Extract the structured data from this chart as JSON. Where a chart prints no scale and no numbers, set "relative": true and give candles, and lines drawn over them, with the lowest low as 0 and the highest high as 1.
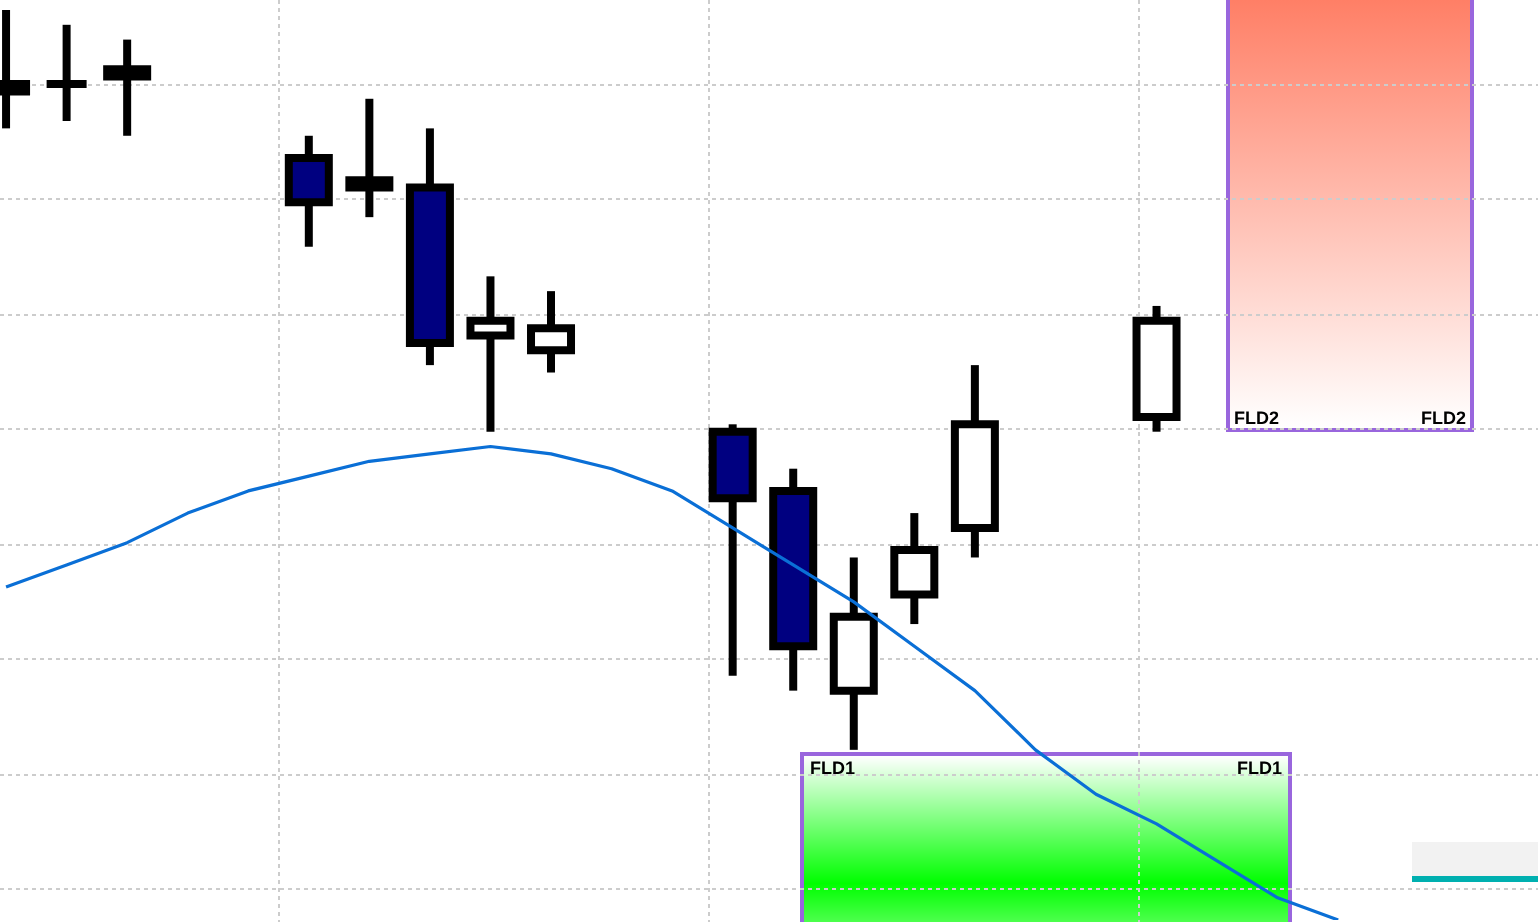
{
  "chart_data": {
    "type": "candlestick",
    "relative": true,
    "grid": true,
    "legend": false,
    "colors": [
      "#ffffff",
      "#000000",
      "#ffffff",
      null,
      null,
      "#000080",
      "#ffffff",
      "#000080",
      "#ffffff",
      "#ffffff",
      null,
      null,
      "#000080",
      "#000080",
      "#ffffff",
      "#ffffff",
      "#ffffff",
      null,
      null,
      "#ffffff",
      null,
      null,
      null,
      null,
      null,
      null
    ],
    "categories": [
      null,
      null,
      null,
      null,
      null,
      null,
      null,
      null,
      null,
      null,
      null,
      null,
      null,
      null,
      null,
      null,
      null,
      null,
      null,
      null,
      null,
      null,
      null,
      null,
      null,
      null
    ],
    "ohlc": [
      [
        0.89,
        1.0,
        0.84,
        0.9
      ],
      [
        0.9,
        0.98,
        0.85,
        0.9
      ],
      [
        0.91,
        0.96,
        0.83,
        0.92
      ],
      null,
      null,
      [
        0.8,
        0.83,
        0.68,
        0.74
      ],
      [
        0.76,
        0.88,
        0.72,
        0.77
      ],
      [
        0.76,
        0.84,
        0.52,
        0.55
      ],
      [
        0.56,
        0.64,
        0.43,
        0.58
      ],
      [
        0.54,
        0.62,
        0.51,
        0.57
      ],
      null,
      null,
      [
        0.43,
        0.44,
        0.1,
        0.34
      ],
      [
        0.35,
        0.38,
        0.08,
        0.14
      ],
      [
        0.08,
        0.26,
        0.0,
        0.18
      ],
      [
        0.21,
        0.32,
        0.17,
        0.27
      ],
      [
        0.3,
        0.52,
        0.26,
        0.44
      ],
      null,
      null,
      [
        0.45,
        0.6,
        0.43,
        0.58
      ],
      null,
      null,
      null,
      null,
      null,
      null
    ],
    "series": [
      {
        "type": "line",
        "color": "#0a6fd6",
        "marker": "none",
        "line_style": "solid",
        "values": [
          0.22,
          0.25,
          0.28,
          0.32,
          0.35,
          0.37,
          0.39,
          0.4,
          0.41,
          0.4,
          0.38,
          0.35,
          0.3,
          0.25,
          0.2,
          0.14,
          0.08,
          0.0,
          -0.06,
          -0.1,
          -0.15,
          -0.2,
          -0.23,
          null,
          null,
          null
        ]
      }
    ],
    "annotations": [
      "FLD1",
      "FLD1",
      "FLD2",
      "FLD2"
    ]
  }
}
